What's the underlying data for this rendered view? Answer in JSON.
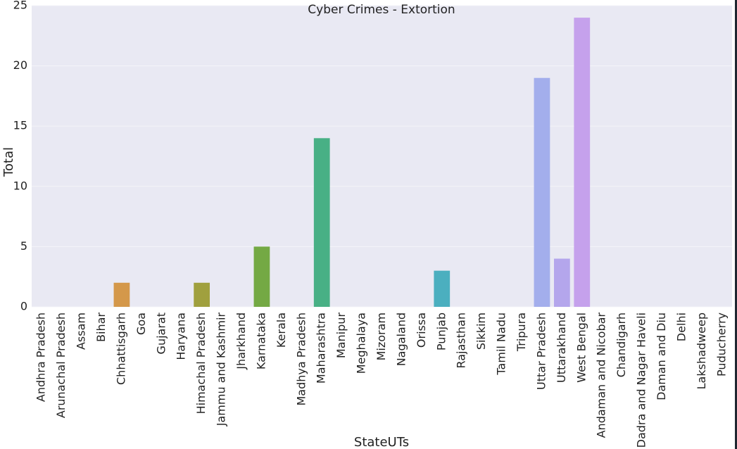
{
  "chart_data": {
    "type": "bar",
    "title": "Cyber Crimes - Extortion",
    "xlabel": "StateUTs",
    "ylabel": "Total",
    "ylim": [
      0,
      25
    ],
    "yticks": [
      0,
      5,
      10,
      15,
      20,
      25
    ],
    "grid": true,
    "legend": "none",
    "categories": [
      "Andhra Pradesh",
      "Arunachal Pradesh",
      "Assam",
      "Bihar",
      "Chhattisgarh",
      "Goa",
      "Gujarat",
      "Haryana",
      "Himachal Pradesh",
      "Jammu and Kashmir",
      "Jharkhand",
      "Karnataka",
      "Kerala",
      "Madhya Pradesh",
      "Maharashtra",
      "Manipur",
      "Meghalaya",
      "Mizoram",
      "Nagaland",
      "Orissa",
      "Punjab",
      "Rajasthan",
      "Sikkim",
      "Tamil Nadu",
      "Tripura",
      "Uttar Pradesh",
      "Uttarakhand",
      "West Bengal",
      "Andaman and Nicobar",
      "Chandigarh",
      "Dadra and Nagar Haveli",
      "Daman and Diu",
      "Delhi",
      "Lakshadweep",
      "Puducherry"
    ],
    "values": [
      0,
      0,
      0,
      0,
      2,
      0,
      0,
      0,
      2,
      0,
      0,
      5,
      0,
      0,
      14,
      0,
      0,
      0,
      0,
      0,
      3,
      0,
      0,
      0,
      0,
      19,
      4,
      24,
      0,
      0,
      0,
      0,
      0,
      0,
      0
    ],
    "colors": {
      "Chhattisgarh": "#d4984a",
      "Himachal Pradesh": "#a0a03e",
      "Karnataka": "#74a944",
      "Maharashtra": "#48b085",
      "Punjab": "#4bafbf",
      "Uttar Pradesh": "#a3aeec",
      "Uttarakhand": "#b4a6ec",
      "West Bengal": "#c5a1ec"
    },
    "plot_background": "#e9e9f3",
    "gridline_color": "#f4f4f8"
  }
}
